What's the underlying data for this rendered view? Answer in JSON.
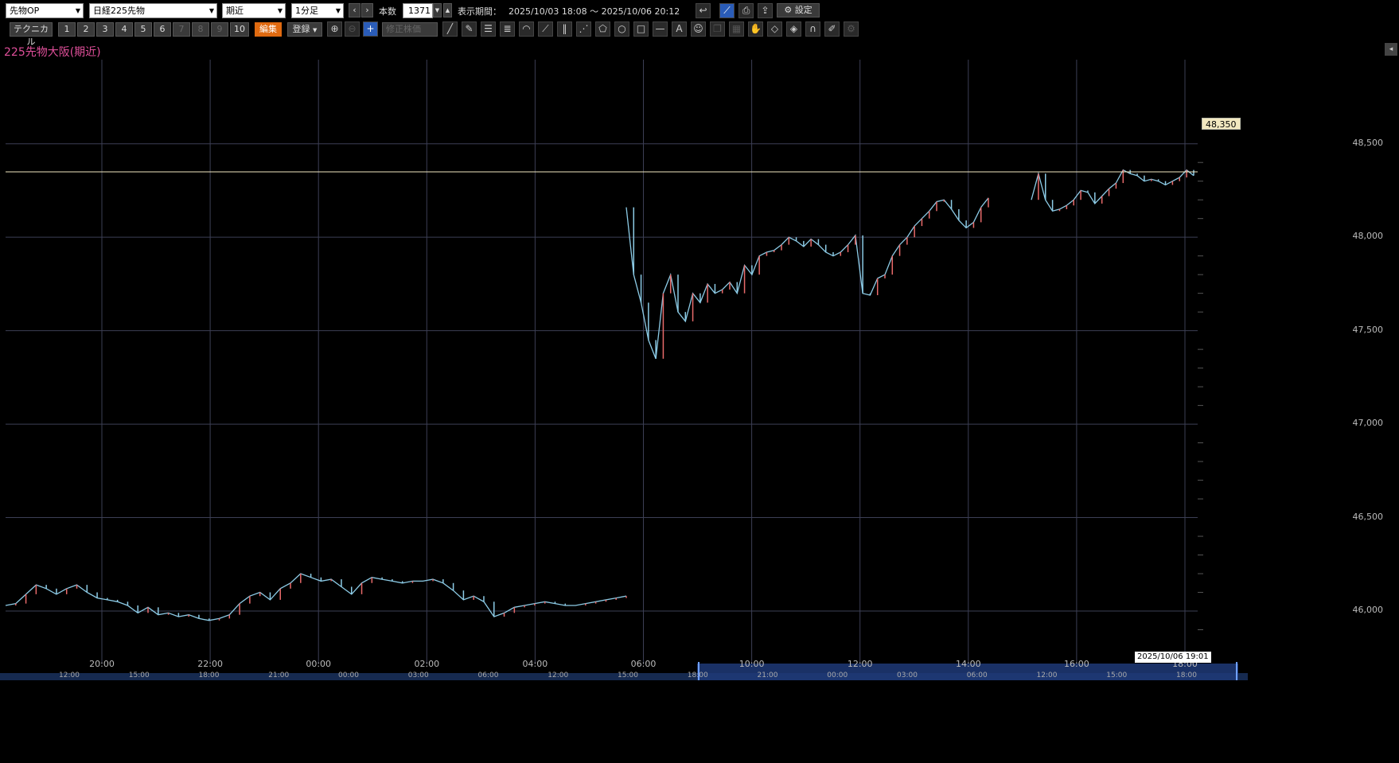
{
  "toolbar1": {
    "category": "先物OP",
    "instrument": "日経225先物",
    "contract": "期近",
    "interval": "1分足",
    "bars_label": "本数",
    "bars_value": "1371",
    "period_label": "表示期間：",
    "period_value": "2025/10/03 18:08 ～ 2025/10/06 20:12",
    "settings_label": "設定"
  },
  "toolbar2": {
    "technical_label": "テクニカル",
    "presets": [
      "1",
      "2",
      "3",
      "4",
      "5",
      "6",
      "7",
      "8",
      "9",
      "10"
    ],
    "edit_label": "編集",
    "register_label": "登録",
    "adjust_label": "修正株価"
  },
  "chart": {
    "title": "225先物大阪(期近)",
    "current_price": "48,350",
    "cursor_date": "2025/10/06 19:01"
  },
  "chart_data": {
    "type": "line",
    "title": "225先物大阪(期近)",
    "y_ticks": [
      "48,500",
      "48,000",
      "47,500",
      "47,000",
      "46,500",
      "46,000"
    ],
    "ylim": [
      45800,
      48950
    ],
    "x_ticks": [
      "20:00",
      "22:00",
      "00:00",
      "02:00",
      "04:00",
      "06:00",
      "10:00",
      "12:00",
      "14:00",
      "16:00",
      "18:00"
    ],
    "navigator_ticks": [
      "12:00",
      "15:00",
      "18:00",
      "21:00",
      "00:00",
      "03:00",
      "06:00",
      "12:00",
      "15:00",
      "18:00",
      "21:00",
      "00:00",
      "03:00",
      "06:00",
      "12:00",
      "15:00",
      "18:00"
    ],
    "horizontal_line": 48350,
    "series": [
      {
        "segment": "night",
        "values": [
          46030,
          46040,
          46090,
          46140,
          46120,
          46090,
          46120,
          46140,
          46100,
          46070,
          46060,
          46050,
          46030,
          45990,
          46020,
          45980,
          45990,
          45970,
          45980,
          45960,
          45950,
          45960,
          45980,
          46040,
          46080,
          46100,
          46060,
          46120,
          46150,
          46200,
          46180,
          46160,
          46170,
          46130,
          46090,
          46150,
          46180,
          46170,
          46160,
          46150,
          46160,
          46160,
          46170,
          46150,
          46110,
          46060,
          46080,
          46050,
          45970,
          45990,
          46020,
          46030,
          46040,
          46050,
          46040,
          46030,
          46030,
          46040,
          46050,
          46060,
          46070,
          46080
        ]
      },
      {
        "segment": "day1",
        "values": [
          48160,
          47800,
          47650,
          47450,
          47350,
          47700,
          47800,
          47600,
          47550,
          47700,
          47650,
          47750,
          47700,
          47720,
          47760,
          47700,
          47850,
          47800,
          47900,
          47920,
          47930,
          47960,
          48000,
          47980,
          47950,
          47990,
          47960,
          47920,
          47900,
          47920,
          47960,
          48010,
          47700,
          47690,
          47780,
          47800,
          47900,
          47960,
          48000,
          48060,
          48100,
          48140,
          48190,
          48200,
          48150,
          48090,
          48050,
          48080,
          48160,
          48210
        ]
      },
      {
        "segment": "day2",
        "values": [
          48200,
          48340,
          48200,
          48140,
          48150,
          48170,
          48200,
          48250,
          48240,
          48180,
          48220,
          48260,
          48290,
          48360,
          48340,
          48330,
          48300,
          48310,
          48300,
          48280,
          48300,
          48320,
          48360,
          48330
        ]
      }
    ]
  }
}
